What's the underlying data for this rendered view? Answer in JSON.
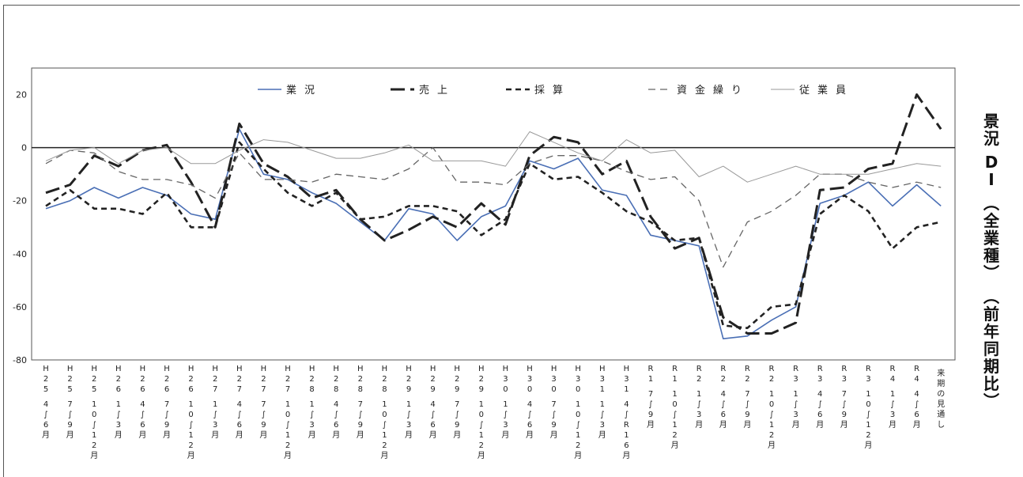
{
  "chart_data": {
    "type": "line",
    "title": "景況DI（全業種）（前年同期比）",
    "ylim": [
      -80,
      30
    ],
    "yticks": [
      20,
      0,
      -20,
      -40,
      -60,
      -80
    ],
    "grid": false,
    "legend_position": "top",
    "categories": [
      "H25 4～6月",
      "H25 7～9月",
      "H25 10～12月",
      "H26 1～3月",
      "H26 4～6月",
      "H26 7～9月",
      "H26 10～12月",
      "H27 1～3月",
      "H27 4～6月",
      "H27 7～9月",
      "H27 10～12月",
      "H28 1～3月",
      "H28 4～6月",
      "H28 7～9月",
      "H28 10～12月",
      "H29 1～3月",
      "H29 4～6月",
      "H29 7～9月",
      "H29 10～12月",
      "H30 1～3月",
      "H30 4～6月",
      "H30 7～9月",
      "H30 10～12月",
      "H31 1～3月",
      "H31 4～R1 6月",
      "R1 7～9月",
      "R1 10～12月",
      "R2 1～3月",
      "R2 4～6月",
      "R2 7～9月",
      "R2 10～12月",
      "R3 1～3月",
      "R3 4～6月",
      "R3 7～9月",
      "R3 10～12月",
      "R4 1～3月",
      "R4 4～6月",
      "来期の見通し"
    ],
    "series": [
      {
        "name": "業況",
        "style": "blue-solid",
        "color": "#4a6fb5",
        "values": [
          -23,
          -20,
          -15,
          -19,
          -15,
          -18,
          -25,
          -27,
          7,
          -10,
          -12,
          -17,
          -21,
          -28,
          -35,
          -23,
          -25,
          -35,
          -26,
          -22,
          -5,
          -8,
          -4,
          -16,
          -18,
          -33,
          -35,
          -37,
          -72,
          -71,
          -65,
          -60,
          -21,
          -18,
          -13,
          -22,
          -14,
          -22
        ]
      },
      {
        "name": "売上",
        "style": "black-longdash",
        "color": "#222222",
        "values": [
          -17,
          -14,
          -3,
          -7,
          -1,
          1,
          -13,
          -30,
          9,
          -6,
          -11,
          -19,
          -16,
          -27,
          -35,
          -31,
          -26,
          -30,
          -21,
          -29,
          -3,
          4,
          2,
          -10,
          -5,
          -26,
          -38,
          -34,
          -64,
          -70,
          -70,
          -66,
          -16,
          -15,
          -8,
          -6,
          20,
          7
        ]
      },
      {
        "name": "採算",
        "style": "black-dash",
        "color": "#222222",
        "values": [
          -22,
          -16,
          -23,
          -23,
          -25,
          -17,
          -30,
          -30,
          2,
          -8,
          -17,
          -22,
          -17,
          -27,
          -26,
          -22,
          -22,
          -24,
          -33,
          -27,
          -6,
          -12,
          -11,
          -17,
          -24,
          -28,
          -35,
          -34,
          -67,
          -68,
          -60,
          -59,
          -25,
          -18,
          -24,
          -38,
          -30,
          -28
        ]
      },
      {
        "name": "資金繰り",
        "style": "gray-dash",
        "color": "#666666",
        "values": [
          -6,
          -1,
          -2,
          -9,
          -12,
          -12,
          -14,
          -19,
          -2,
          -12,
          -12,
          -13,
          -10,
          -11,
          -12,
          -8,
          0,
          -13,
          -13,
          -14,
          -6,
          -3,
          -3,
          -5,
          -9,
          -12,
          -11,
          -20,
          -45,
          -28,
          -24,
          -18,
          -10,
          -10,
          -13,
          -15,
          -13,
          -15
        ]
      },
      {
        "name": "従業員",
        "style": "gray-thin",
        "color": "#999999",
        "values": [
          -5,
          -1,
          0,
          -6,
          -1,
          0,
          -6,
          -6,
          -1,
          3,
          2,
          -1,
          -4,
          -4,
          -2,
          1,
          -5,
          -5,
          -5,
          -7,
          6,
          2,
          -2,
          -5,
          3,
          -2,
          -1,
          -11,
          -7,
          -13,
          -10,
          -7,
          -10,
          -10,
          -10,
          -8,
          -6,
          -7
        ]
      }
    ]
  },
  "xlabels": [
    {
      "p1": "H",
      "p2": "25",
      "p3": "4～6月"
    },
    {
      "p1": "H",
      "p2": "25",
      "p3": "7～9月"
    },
    {
      "p1": "H",
      "p2": "25",
      "p3": "10～12月"
    },
    {
      "p1": "H",
      "p2": "26",
      "p3": "1～3月"
    },
    {
      "p1": "H",
      "p2": "26",
      "p3": "4～6月"
    },
    {
      "p1": "H",
      "p2": "26",
      "p3": "7～9月"
    },
    {
      "p1": "H",
      "p2": "26",
      "p3": "10～12月"
    },
    {
      "p1": "H",
      "p2": "27",
      "p3": "1～3月"
    },
    {
      "p1": "H",
      "p2": "27",
      "p3": "4～6月"
    },
    {
      "p1": "H",
      "p2": "27",
      "p3": "7～9月"
    },
    {
      "p1": "H",
      "p2": "27",
      "p3": "10～12月"
    },
    {
      "p1": "H",
      "p2": "28",
      "p3": "1～3月"
    },
    {
      "p1": "H",
      "p2": "28",
      "p3": "4～6月"
    },
    {
      "p1": "H",
      "p2": "28",
      "p3": "7～9月"
    },
    {
      "p1": "H",
      "p2": "28",
      "p3": "10～12月"
    },
    {
      "p1": "H",
      "p2": "29",
      "p3": "1～3月"
    },
    {
      "p1": "H",
      "p2": "29",
      "p3": "4～6月"
    },
    {
      "p1": "H",
      "p2": "29",
      "p3": "7～9月"
    },
    {
      "p1": "H",
      "p2": "29",
      "p3": "10～12月"
    },
    {
      "p1": "H",
      "p2": "30",
      "p3": "1～3月"
    },
    {
      "p1": "H",
      "p2": "30",
      "p3": "4～6月"
    },
    {
      "p1": "H",
      "p2": "30",
      "p3": "7～9月"
    },
    {
      "p1": "H",
      "p2": "30",
      "p3": "10～12月"
    },
    {
      "p1": "H",
      "p2": "31",
      "p3": "1～3月"
    },
    {
      "p1": "H",
      "p2": "31",
      "p3": "4～R1 6月"
    },
    {
      "p1": "R",
      "p2": "1",
      "p3": "7～9月"
    },
    {
      "p1": "R",
      "p2": "1",
      "p3": "10～12月"
    },
    {
      "p1": "R",
      "p2": "2",
      "p3": "1～3月"
    },
    {
      "p1": "R",
      "p2": "2",
      "p3": "4～6月"
    },
    {
      "p1": "R",
      "p2": "2",
      "p3": "7～9月"
    },
    {
      "p1": "R",
      "p2": "2",
      "p3": "10～12月"
    },
    {
      "p1": "R",
      "p2": "3",
      "p3": "1～3月"
    },
    {
      "p1": "R",
      "p2": "3",
      "p3": "4～6月"
    },
    {
      "p1": "R",
      "p2": "3",
      "p3": "7～9月"
    },
    {
      "p1": "R",
      "p2": "3",
      "p3": "10～12月"
    },
    {
      "p1": "R",
      "p2": "4",
      "p3": "1～3月"
    },
    {
      "p1": "R",
      "p2": "4",
      "p3": "4～6月"
    },
    {
      "p1": "",
      "p2": "",
      "p3": "来期の見通し"
    }
  ],
  "side_title": {
    "line1": "景況",
    "line2": "DI",
    "line3": "（全業種）",
    "line4": "（前年同期比）"
  }
}
